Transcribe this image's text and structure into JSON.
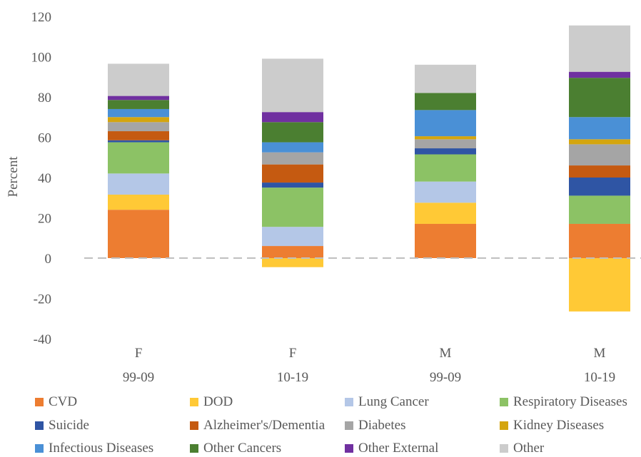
{
  "chart_data": {
    "type": "bar",
    "stacked": true,
    "title": "",
    "ylabel": "Percent",
    "ylim": [
      -40,
      120
    ],
    "yticks": [
      -40,
      -20,
      0,
      20,
      40,
      60,
      80,
      100,
      120
    ],
    "grid": false,
    "legend_position": "bottom",
    "zero_line": "dashed",
    "categories": [
      {
        "group": "F",
        "period": "99-09"
      },
      {
        "group": "F",
        "period": "10-19"
      },
      {
        "group": "M",
        "period": "99-09"
      },
      {
        "group": "M",
        "period": "10-19"
      }
    ],
    "series": [
      {
        "name": "CVD",
        "color": "#ED7D31",
        "values": [
          24,
          6,
          17,
          17
        ]
      },
      {
        "name": "DOD",
        "color": "#FFC936",
        "values": [
          7.5,
          -4.5,
          10.5,
          -26.5
        ]
      },
      {
        "name": "Lung Cancer",
        "color": "#B4C7E7",
        "values": [
          10.5,
          9.5,
          10.5,
          0
        ]
      },
      {
        "name": "Respiratory Diseases",
        "color": "#8CC265",
        "values": [
          15.5,
          19.5,
          13.5,
          14
        ]
      },
      {
        "name": "Suicide",
        "color": "#2F55A4",
        "values": [
          1,
          2.5,
          3,
          9
        ]
      },
      {
        "name": "Alzheimer's/Dementia",
        "color": "#C55A11",
        "values": [
          4.5,
          9,
          0,
          6
        ]
      },
      {
        "name": "Diabetes",
        "color": "#A5A5A5",
        "values": [
          4.5,
          6,
          4.5,
          10.5
        ]
      },
      {
        "name": "Kidney Diseases",
        "color": "#D4A50F",
        "values": [
          2.5,
          0,
          1.5,
          2.5
        ]
      },
      {
        "name": "Infectious Diseases",
        "color": "#4A90D6",
        "values": [
          4,
          5,
          13,
          11
        ]
      },
      {
        "name": "Other Cancers",
        "color": "#4B7F31",
        "values": [
          4.5,
          10,
          8.5,
          19.5
        ]
      },
      {
        "name": "Other External",
        "color": "#7030A0",
        "values": [
          2,
          5,
          0,
          3
        ]
      },
      {
        "name": "Other",
        "color": "#CCCCCC",
        "values": [
          16,
          26.5,
          14,
          23
        ]
      }
    ]
  }
}
